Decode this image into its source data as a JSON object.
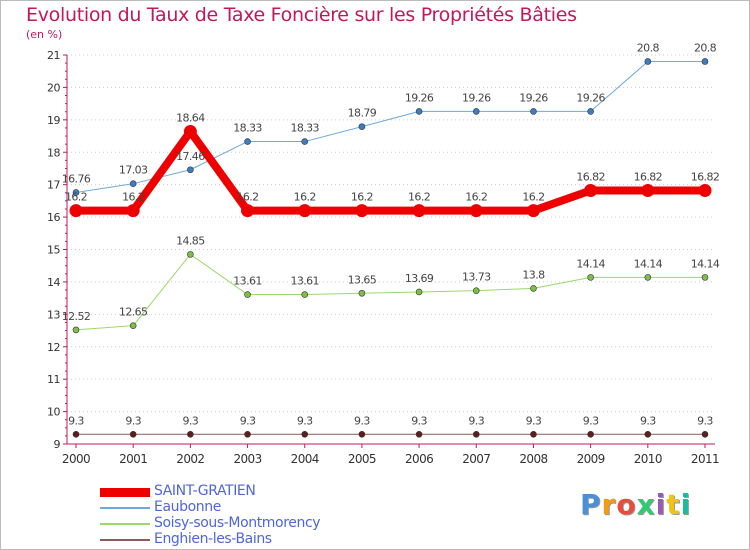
{
  "title": "Evolution du Taux de Taxe Foncière sur les Propriétés Bâties",
  "unit": "(en %)",
  "chart_data": {
    "type": "line",
    "title": "Evolution du Taux de Taxe Foncière sur les Propriétés Bâties",
    "ylabel": "(en %)",
    "xlabel": "",
    "categories": [
      "2000",
      "2001",
      "2002",
      "2003",
      "2004",
      "2005",
      "2006",
      "2007",
      "2008",
      "2009",
      "2010",
      "2011"
    ],
    "ylim": [
      9,
      21
    ],
    "yticks": [
      9,
      10,
      11,
      12,
      13,
      14,
      15,
      16,
      17,
      18,
      19,
      20,
      21
    ],
    "grid": "horizontal dotted",
    "series": [
      {
        "name": "Eaubonne",
        "color": "#6fa8dc",
        "marker": "#3a7fc4",
        "width": 1,
        "values": [
          16.76,
          17.03,
          17.46,
          18.33,
          18.33,
          18.79,
          19.26,
          19.26,
          19.26,
          19.26,
          20.8,
          20.8
        ],
        "labels": [
          "16.76",
          "17.03",
          "17.46",
          "18.33",
          "18.33",
          "18.79",
          "19.26",
          "19.26",
          "19.26",
          "19.26",
          "20.8",
          "20.8"
        ]
      },
      {
        "name": "Soisy-sous-Montmorency",
        "color": "#9dd86a",
        "marker": "#7ac143",
        "width": 1,
        "values": [
          12.52,
          12.65,
          14.85,
          13.61,
          13.61,
          13.65,
          13.69,
          13.73,
          13.8,
          14.14,
          14.14,
          14.14
        ],
        "labels": [
          "12.52",
          "12.65",
          "14.85",
          "13.61",
          "13.61",
          "13.65",
          "13.69",
          "13.73",
          "13.8",
          "14.14",
          "14.14",
          "14.14"
        ]
      },
      {
        "name": "Enghien-les-Bains",
        "color": "#8c5a5a",
        "marker": "#5c1f1f",
        "width": 1,
        "values": [
          9.3,
          9.3,
          9.3,
          9.3,
          9.3,
          9.3,
          9.3,
          9.3,
          9.3,
          9.3,
          9.3,
          9.3
        ],
        "labels": [
          "9.3",
          "9.3",
          "9.3",
          "9.3",
          "9.3",
          "9.3",
          "9.3",
          "9.3",
          "9.3",
          "9.3",
          "9.3",
          "9.3"
        ]
      },
      {
        "name": "SAINT-GRATIEN",
        "color": "#ee0000",
        "marker": "#ee0000",
        "width": 8,
        "values": [
          16.2,
          16.2,
          18.64,
          16.2,
          16.2,
          16.2,
          16.2,
          16.2,
          16.2,
          16.82,
          16.82,
          16.82
        ],
        "labels": [
          "16.2",
          "16.2",
          "18.64",
          "16.2",
          "16.2",
          "16.2",
          "16.2",
          "16.2",
          "16.2",
          "16.82",
          "16.82",
          "16.82"
        ]
      }
    ],
    "legend": [
      "SAINT-GRATIEN",
      "Eaubonne",
      "Soisy-sous-Montmorency",
      "Enghien-les-Bains"
    ]
  },
  "legend": [
    {
      "label": "SAINT-GRATIEN",
      "color": "#ee0000",
      "width": 9
    },
    {
      "label": "Eaubonne",
      "color": "#6fa8dc",
      "width": 2
    },
    {
      "label": "Soisy-sous-Montmorency",
      "color": "#9dd86a",
      "width": 2
    },
    {
      "label": "Enghien-les-Bains",
      "color": "#8c5a5a",
      "width": 2
    }
  ],
  "logo": {
    "text": [
      "P",
      "r",
      "o",
      "x",
      "i",
      "t",
      "i"
    ],
    "colors": [
      "#4a90d9",
      "#f39c12",
      "#e74c3c",
      "#2ecc71",
      "#9b59b6",
      "#f1c40f",
      "#1abc9c"
    ]
  }
}
